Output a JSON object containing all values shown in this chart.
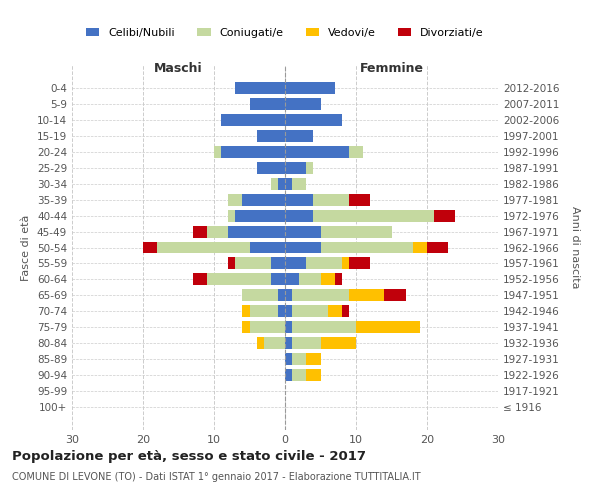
{
  "age_groups": [
    "100+",
    "95-99",
    "90-94",
    "85-89",
    "80-84",
    "75-79",
    "70-74",
    "65-69",
    "60-64",
    "55-59",
    "50-54",
    "45-49",
    "40-44",
    "35-39",
    "30-34",
    "25-29",
    "20-24",
    "15-19",
    "10-14",
    "5-9",
    "0-4"
  ],
  "birth_years": [
    "≤ 1916",
    "1917-1921",
    "1922-1926",
    "1927-1931",
    "1932-1936",
    "1937-1941",
    "1942-1946",
    "1947-1951",
    "1952-1956",
    "1957-1961",
    "1962-1966",
    "1967-1971",
    "1972-1976",
    "1977-1981",
    "1982-1986",
    "1987-1991",
    "1992-1996",
    "1997-2001",
    "2002-2006",
    "2007-2011",
    "2012-2016"
  ],
  "maschi": {
    "celibi": [
      0,
      0,
      0,
      0,
      0,
      0,
      1,
      1,
      2,
      2,
      5,
      8,
      7,
      6,
      1,
      4,
      9,
      4,
      9,
      5,
      7
    ],
    "coniugati": [
      0,
      0,
      0,
      0,
      3,
      5,
      4,
      5,
      9,
      5,
      13,
      3,
      1,
      2,
      1,
      0,
      1,
      0,
      0,
      0,
      0
    ],
    "vedovi": [
      0,
      0,
      0,
      0,
      1,
      1,
      1,
      0,
      0,
      0,
      0,
      0,
      0,
      0,
      0,
      0,
      0,
      0,
      0,
      0,
      0
    ],
    "divorziati": [
      0,
      0,
      0,
      0,
      0,
      0,
      0,
      0,
      2,
      1,
      2,
      2,
      0,
      0,
      0,
      0,
      0,
      0,
      0,
      0,
      0
    ]
  },
  "femmine": {
    "nubili": [
      0,
      0,
      1,
      1,
      1,
      1,
      1,
      1,
      2,
      3,
      5,
      5,
      4,
      4,
      1,
      3,
      9,
      4,
      8,
      5,
      7
    ],
    "coniugate": [
      0,
      0,
      2,
      2,
      4,
      9,
      5,
      8,
      3,
      5,
      13,
      10,
      17,
      5,
      2,
      1,
      2,
      0,
      0,
      0,
      0
    ],
    "vedove": [
      0,
      0,
      2,
      2,
      5,
      9,
      2,
      5,
      2,
      1,
      2,
      0,
      0,
      0,
      0,
      0,
      0,
      0,
      0,
      0,
      0
    ],
    "divorziate": [
      0,
      0,
      0,
      0,
      0,
      0,
      1,
      3,
      1,
      3,
      3,
      0,
      3,
      3,
      0,
      0,
      0,
      0,
      0,
      0,
      0
    ]
  },
  "colors": {
    "celibi": "#4472c4",
    "coniugati": "#c5d9a0",
    "vedovi": "#ffc000",
    "divorziati": "#c0000b"
  },
  "legend_labels": [
    "Celibi/Nubili",
    "Coniugati/e",
    "Vedovi/e",
    "Divorziati/e"
  ],
  "title": "Popolazione per età, sesso e stato civile - 2017",
  "subtitle": "COMUNE DI LEVONE (TO) - Dati ISTAT 1° gennaio 2017 - Elaborazione TUTTITALIA.IT",
  "ylabel_left": "Fasce di età",
  "ylabel_right": "Anni di nascita",
  "xlabel_left": "Maschi",
  "xlabel_right": "Femmine",
  "xlim": 30,
  "background_color": "#ffffff",
  "grid_color": "#cccccc"
}
